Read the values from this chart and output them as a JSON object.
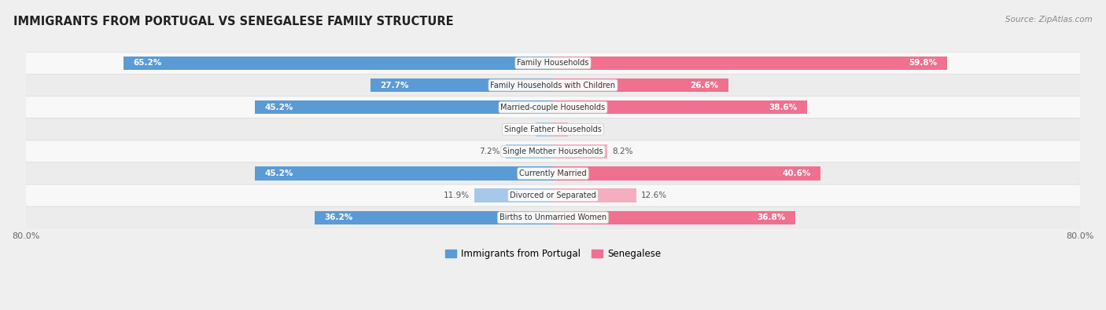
{
  "title": "IMMIGRANTS FROM PORTUGAL VS SENEGALESE FAMILY STRUCTURE",
  "source": "Source: ZipAtlas.com",
  "categories": [
    "Family Households",
    "Family Households with Children",
    "Married-couple Households",
    "Single Father Households",
    "Single Mother Households",
    "Currently Married",
    "Divorced or Separated",
    "Births to Unmarried Women"
  ],
  "portugal_values": [
    65.2,
    27.7,
    45.2,
    2.6,
    7.2,
    45.2,
    11.9,
    36.2
  ],
  "senegalese_values": [
    59.8,
    26.6,
    38.6,
    2.3,
    8.2,
    40.6,
    12.6,
    36.8
  ],
  "max_val": 80.0,
  "portugal_color_dark": "#5b9bd5",
  "portugal_color_light": "#a8c8e8",
  "senegalese_color_dark": "#f07090",
  "senegalese_color_light": "#f5aec0",
  "bar_height": 0.62,
  "background_color": "#efefef",
  "row_colors": [
    "#f8f8f8",
    "#ececec"
  ]
}
